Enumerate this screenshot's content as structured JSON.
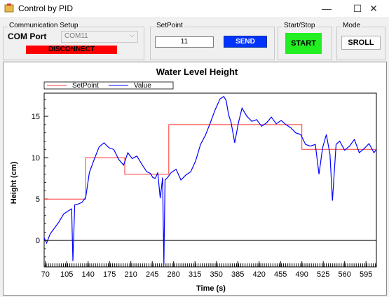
{
  "window": {
    "title": "Control by PID",
    "minimize": "—",
    "maximize": "☐",
    "close": "✕"
  },
  "comm": {
    "legend": "Communication Setup",
    "port_label": "COM Port",
    "port_value": "COM11",
    "disconnect_label": "DISCONNECT",
    "disconnect_color": "#ff0000"
  },
  "setpoint": {
    "legend": "SetPoint",
    "value": "11",
    "send_label": "SEND",
    "send_color": "#0033ff"
  },
  "startstop": {
    "legend": "Start/Stop",
    "start_label": "START",
    "start_color": "#22ee22"
  },
  "mode": {
    "legend": "Mode",
    "sroll_label": "SROLL"
  },
  "chart_data": {
    "type": "line",
    "title": "Water Level Height",
    "xlabel": "Time (s)",
    "ylabel": "Height (cm)",
    "xlim": [
      68,
      612
    ],
    "ylim": [
      -3.2,
      17.8
    ],
    "xticks": [
      70,
      105,
      140,
      175,
      210,
      245,
      280,
      315,
      350,
      385,
      420,
      455,
      490,
      525,
      560,
      595
    ],
    "yticks": [
      0,
      5,
      10,
      15
    ],
    "legend": "top-left",
    "series": [
      {
        "name": "SetPoint",
        "color": "#ff3333",
        "x": [
          68,
          136,
          136,
          200,
          200,
          272,
          272,
          490,
          490,
          612
        ],
        "y": [
          5,
          5,
          10,
          10,
          8,
          8,
          14,
          14,
          11,
          11
        ]
      },
      {
        "name": "Value",
        "color": "#0000ff",
        "x": [
          68,
          72,
          78,
          85,
          92,
          100,
          108,
          113,
          115,
          118,
          124,
          130,
          136,
          142,
          150,
          158,
          166,
          174,
          182,
          190,
          198,
          205,
          212,
          220,
          228,
          236,
          242,
          246,
          250,
          254,
          258,
          262,
          264,
          266,
          270,
          276,
          284,
          292,
          300,
          308,
          316,
          324,
          332,
          340,
          348,
          356,
          362,
          366,
          370,
          374,
          380,
          386,
          392,
          400,
          408,
          416,
          424,
          432,
          440,
          448,
          456,
          464,
          472,
          480,
          488,
          496,
          504,
          512,
          518,
          524,
          530,
          536,
          540,
          546,
          552,
          560,
          568,
          576,
          584,
          592,
          600,
          608,
          612
        ],
        "y": [
          0.3,
          -0.3,
          0.8,
          1.5,
          2.2,
          3.2,
          3.6,
          3.8,
          -2.5,
          4.3,
          4.4,
          4.6,
          5.2,
          8.2,
          9.8,
          11.3,
          11.8,
          11.2,
          11.0,
          9.8,
          9.1,
          10.6,
          9.9,
          10.2,
          9.2,
          8.3,
          8.1,
          7.6,
          7.5,
          8.2,
          5.1,
          7.6,
          -2.9,
          7.3,
          7.6,
          8.2,
          8.6,
          7.3,
          7.9,
          8.3,
          9.6,
          11.6,
          12.7,
          14.2,
          15.8,
          17.1,
          17.4,
          16.9,
          15.2,
          14.3,
          11.8,
          14.2,
          16.0,
          15.0,
          14.4,
          14.6,
          13.8,
          14.2,
          14.9,
          14.1,
          14.5,
          14.0,
          13.6,
          13.0,
          12.8,
          11.6,
          11.4,
          11.6,
          8.0,
          11.2,
          12.8,
          10.4,
          4.8,
          11.6,
          12.0,
          10.9,
          11.4,
          12.2,
          10.6,
          11.1,
          11.7,
          10.6,
          11.0
        ]
      }
    ]
  }
}
